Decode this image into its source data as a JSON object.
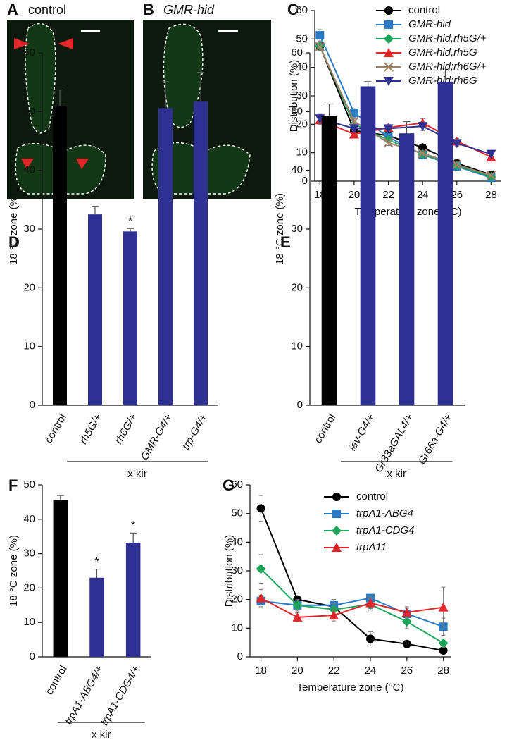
{
  "images": [
    {
      "letter": "A",
      "label": "control"
    },
    {
      "letter": "B",
      "label": "GMR-hid"
    }
  ],
  "chart_data": [
    {
      "type": "line",
      "panel": "C",
      "xlabel": "Temperature zone (°C)",
      "ylabel": "Distribution (%)",
      "x": [
        18,
        20,
        22,
        24,
        26,
        28
      ],
      "xlim": [
        17.7,
        28.6
      ],
      "xticks": [
        18,
        20,
        22,
        24,
        26,
        28
      ],
      "ylim": [
        0,
        60
      ],
      "yticks": [
        0,
        10,
        20,
        30,
        40,
        50,
        60
      ],
      "legend": "upper right",
      "series": [
        {
          "name": "control",
          "color": "#000000",
          "marker": "circle",
          "italic": false,
          "values": [
            47.5,
            17.8,
            16,
            11.8,
            6.3,
            2.2
          ],
          "errors": [
            1.5,
            1,
            1,
            0.8,
            0.6,
            0.4
          ]
        },
        {
          "name": "GMR-hid",
          "color": "#2b7bc4",
          "marker": "square",
          "italic": true,
          "values": [
            51.3,
            24,
            15.5,
            9.3,
            5.2,
            1.2
          ],
          "errors": [
            2,
            1.5,
            1,
            0.8,
            0.6,
            0.4
          ]
        },
        {
          "name": "GMR-hid,rh5G/+",
          "color": "#1fa55a",
          "marker": "diamond",
          "italic": true,
          "values": [
            47.5,
            20,
            14.5,
            9.5,
            5.5,
            1.5
          ],
          "errors": [
            1.5,
            1,
            1,
            0.8,
            0.6,
            0.4
          ]
        },
        {
          "name": "GMR-hid,rh5G",
          "color": "#e3262a",
          "marker": "triangle",
          "italic": true,
          "values": [
            21.5,
            16.5,
            18.8,
            20.5,
            14,
            8.5
          ],
          "errors": [
            1.5,
            1.2,
            1,
            1.5,
            1,
            0.8
          ]
        },
        {
          "name": "GMR-hid;rh6G/+",
          "color": "#a0826a",
          "marker": "x",
          "italic": true,
          "values": [
            47.3,
            21,
            13.5,
            9.8,
            5.8,
            2
          ],
          "errors": [
            1.5,
            1,
            1,
            0.8,
            0.6,
            0.4
          ]
        },
        {
          "name": "GMR-hid;rh6G",
          "color": "#2e3192",
          "marker": "triangle-down",
          "italic": true,
          "values": [
            22,
            18.5,
            18.5,
            19.3,
            13.3,
            9.5
          ],
          "errors": [
            1.5,
            1.2,
            1,
            1.5,
            1,
            0.8
          ]
        }
      ]
    },
    {
      "type": "bar",
      "panel": "D",
      "ylabel": "18 °C zone (%)",
      "group_label": "x kir",
      "categories": [
        "control",
        "rh5G/+",
        "rh6G/+",
        "GMR-G4/+",
        "trp-G4/+"
      ],
      "values": [
        51,
        32.5,
        29.6,
        50.6,
        51.7
      ],
      "errors": [
        2.7,
        1.3,
        0.5,
        4.5,
        5
      ],
      "stars": [
        null,
        "*",
        "*",
        null,
        null
      ],
      "colors": [
        "#000000",
        "#2e3192",
        "#2e3192",
        "#2e3192",
        "#2e3192"
      ],
      "ylim": [
        0,
        60
      ],
      "yticks": [
        0,
        10,
        20,
        30,
        40,
        50,
        60
      ]
    },
    {
      "type": "bar",
      "panel": "E",
      "ylabel": "18 °C zone (%)",
      "group_label": "x kir",
      "categories": [
        "control",
        "iav-G4/+",
        "Gr33aGAL4/+",
        "Gr66a-G4/+"
      ],
      "values": [
        49.3,
        54.3,
        46.3,
        55.1
      ],
      "errors": [
        2,
        0.8,
        2,
        2.3
      ],
      "stars": [
        null,
        null,
        null,
        null
      ],
      "colors": [
        "#000000",
        "#2e3192",
        "#2e3192",
        "#2e3192"
      ],
      "ylim": [
        0,
        60
      ],
      "yticks": [
        0,
        10,
        20,
        30,
        40,
        50,
        60
      ]
    },
    {
      "type": "bar",
      "panel": "F",
      "ylabel": "18 °C zone (%)",
      "group_label": "x kir",
      "categories": [
        "control",
        "trpA1-ABG4/+",
        "trpA1-CDG4/+"
      ],
      "values": [
        45.6,
        23,
        33.2
      ],
      "errors": [
        1.3,
        2.5,
        2.8
      ],
      "stars": [
        null,
        "*",
        "*"
      ],
      "colors": [
        "#000000",
        "#2e3192",
        "#2e3192"
      ],
      "ylim": [
        0,
        50
      ],
      "yticks": [
        0,
        10,
        20,
        30,
        40,
        50
      ]
    },
    {
      "type": "line",
      "panel": "G",
      "xlabel": "Temperature zone (°C)",
      "ylabel": "Distribution (%)",
      "x": [
        18,
        20,
        22,
        24,
        26,
        28
      ],
      "xlim": [
        17.4,
        28.4
      ],
      "xticks": [
        18,
        20,
        22,
        24,
        26,
        28
      ],
      "ylim": [
        0,
        60
      ],
      "yticks": [
        0,
        10,
        20,
        30,
        40,
        50,
        60
      ],
      "legend": "upper right",
      "series": [
        {
          "name": "control",
          "color": "#000000",
          "marker": "circle",
          "italic": false,
          "values": [
            51.8,
            20,
            17.5,
            6.3,
            4.5,
            2.2
          ],
          "errors": [
            4.5,
            1,
            1,
            2.5,
            0.5,
            0.5
          ]
        },
        {
          "name": "trpA1-ABG4",
          "color": "#2b7bc4",
          "marker": "square",
          "italic": true,
          "values": [
            19.5,
            18,
            18,
            20.5,
            15,
            10.5
          ],
          "errors": [
            2,
            1.5,
            2,
            1,
            2,
            3
          ]
        },
        {
          "name": "trpA1-CDG4",
          "color": "#1fa55a",
          "marker": "diamond",
          "italic": true,
          "values": [
            30.7,
            18,
            16.5,
            18.3,
            12.3,
            4.8
          ],
          "errors": [
            5,
            2,
            2,
            2,
            2.5,
            1.5
          ]
        },
        {
          "name": "trpA11",
          "color": "#e3262a",
          "marker": "triangle",
          "italic": true,
          "values": [
            20.5,
            13.8,
            14.5,
            18.8,
            15.5,
            17.3
          ],
          "errors": [
            3,
            1.5,
            2,
            2,
            2,
            7
          ]
        }
      ]
    }
  ]
}
